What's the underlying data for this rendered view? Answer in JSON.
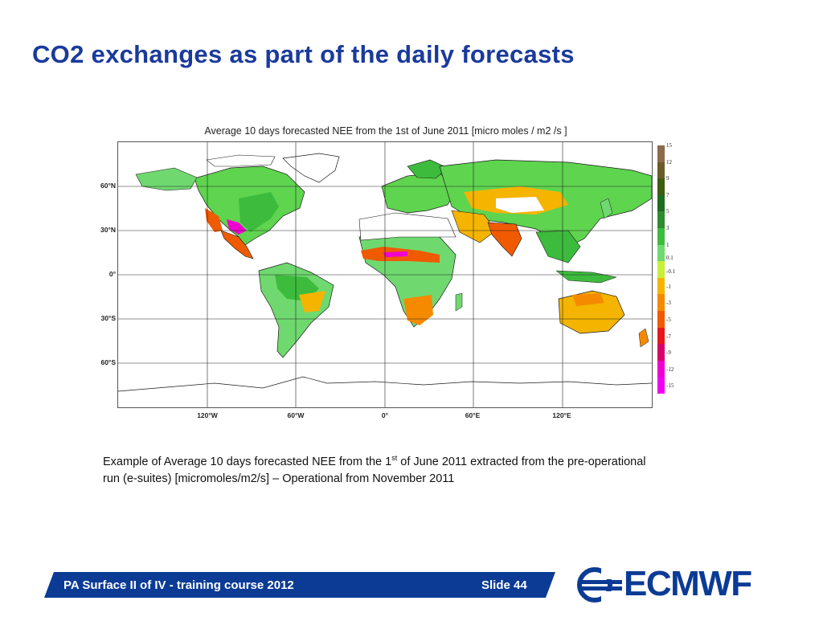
{
  "slide": {
    "title": "CO2 exchanges as part of the daily forecasts"
  },
  "map": {
    "title": "Average 10 days forecasted NEE from the 1st of June 2011 [micro moles / m2 /s ]",
    "lat_labels": [
      "60°N",
      "30°N",
      "0°",
      "30°S",
      "60°S"
    ],
    "lon_labels": [
      "120°W",
      "60°W",
      "0°",
      "60°E",
      "120°E"
    ],
    "colorbar": {
      "labels": [
        "15",
        "12",
        "9",
        "7",
        "5",
        "3",
        "1",
        "0.1",
        "-0.1",
        "-1",
        "-3",
        "-5",
        "-7",
        "-9",
        "-12",
        "-15"
      ],
      "colors": [
        "#8c6a4a",
        "#6b5a2a",
        "#3f5c10",
        "#1f6b1f",
        "#2e8b2e",
        "#3dbb3d",
        "#6fd96f",
        "#c8ef3a",
        "#f4b400",
        "#f58a00",
        "#f05a00",
        "#e8181a",
        "#d8006a",
        "#f000d0",
        "#f000f0"
      ]
    },
    "legend_colors": {
      "ocean": "#ffffff",
      "coast": "#222222",
      "grid": "#222222"
    }
  },
  "caption": {
    "part1": "Example of Average 10 days forecasted NEE from the 1",
    "sup": "st",
    "part2": " of June 2011 extracted from the pre-operational run (e-suites) [micromoles/m2/s] – Operational from November 2011"
  },
  "footer": {
    "course": "PA Surface II of IV - training course 2012",
    "slide": "Slide 44",
    "logo_text": "ECMWF",
    "brand_color": "#0b3b95"
  }
}
